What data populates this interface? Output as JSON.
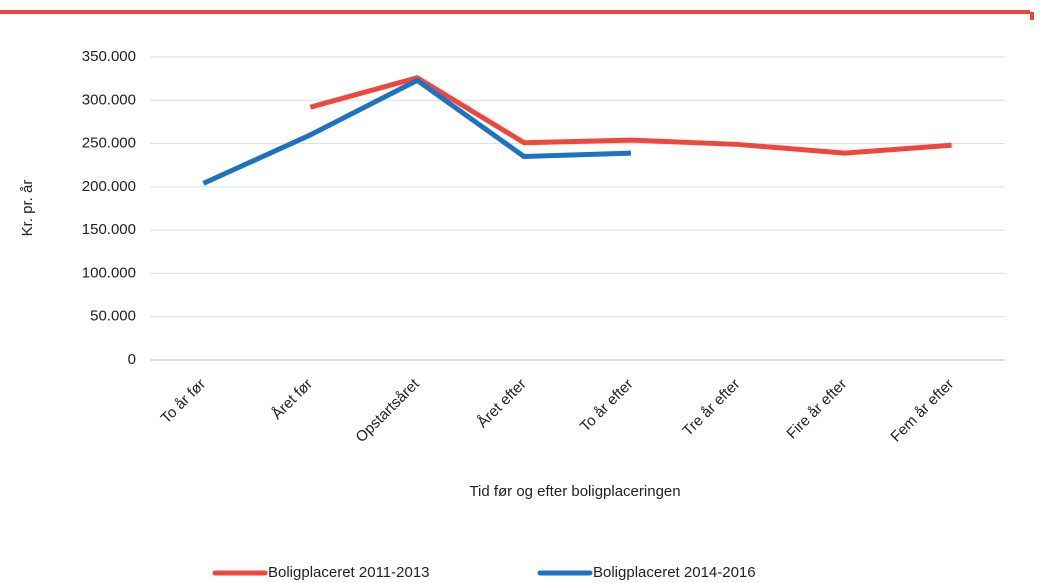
{
  "chart_data": {
    "type": "line",
    "y_label": "Kr. pr. år",
    "x_label": "Tid før og efter boligplaceringen",
    "categories": [
      "To år før",
      "Året før",
      "Opstartsåret",
      "Året efter",
      "To år efter",
      "Tre år efter",
      "Fire år efter",
      "Fem år efter"
    ],
    "series": [
      {
        "name": "Boligplaceret 2011-2013",
        "color": "#f0473c",
        "values": [
          null,
          292000,
          326000,
          251000,
          254000,
          249000,
          239000,
          248000
        ]
      },
      {
        "name": "Boligplaceret 2014-2016",
        "color": "#1c73c4",
        "values": [
          204000,
          260000,
          323000,
          235000,
          239000,
          null,
          null,
          null
        ]
      }
    ],
    "ylim": [
      0,
      350000
    ],
    "yticks": [
      0,
      {
        "value": 50000,
        "label": "50.000"
      },
      {
        "value": 100000,
        "label": "100.000"
      },
      {
        "value": 150000,
        "label": "150.000"
      },
      {
        "value": 200000,
        "label": "200.000"
      },
      {
        "value": 250000,
        "label": "250.000"
      },
      {
        "value": 300000,
        "label": "300.000"
      },
      {
        "value": 350000,
        "label": "350.000"
      }
    ],
    "grid": true
  }
}
